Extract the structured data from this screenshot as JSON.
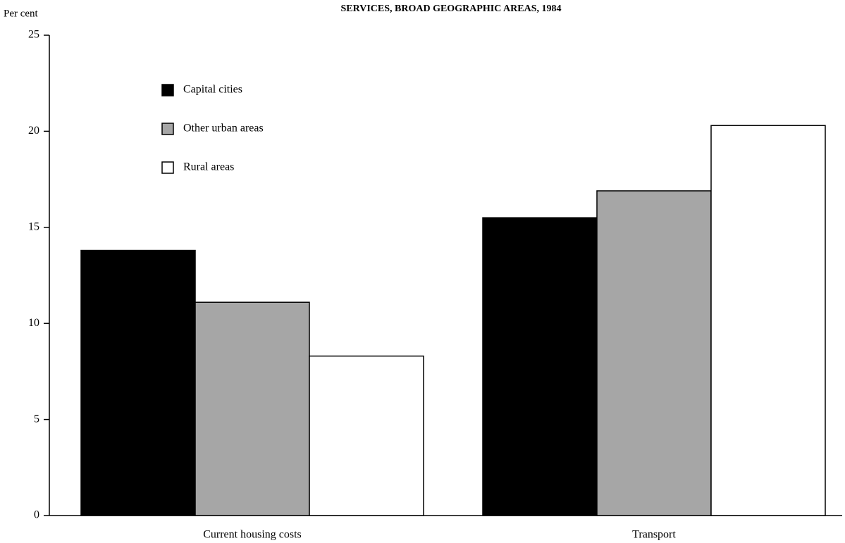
{
  "chart_data": {
    "type": "bar",
    "title": "SERVICES, BROAD GEOGRAPHIC AREAS, 1984",
    "y_label": "Per cent",
    "categories": [
      "Current housing costs",
      "Transport"
    ],
    "series": [
      {
        "name": "Capital cities",
        "color": "#000000",
        "values": [
          13.8,
          15.5
        ]
      },
      {
        "name": "Other urban areas",
        "color": "#a6a6a6",
        "values": [
          11.1,
          16.9
        ]
      },
      {
        "name": "Rural areas",
        "color": "#ffffff",
        "values": [
          8.3,
          20.3
        ]
      }
    ],
    "ylim": [
      0,
      25
    ],
    "yticks": [
      0,
      5,
      10,
      15,
      20,
      25
    ],
    "grid": false,
    "legend": "upper left"
  }
}
